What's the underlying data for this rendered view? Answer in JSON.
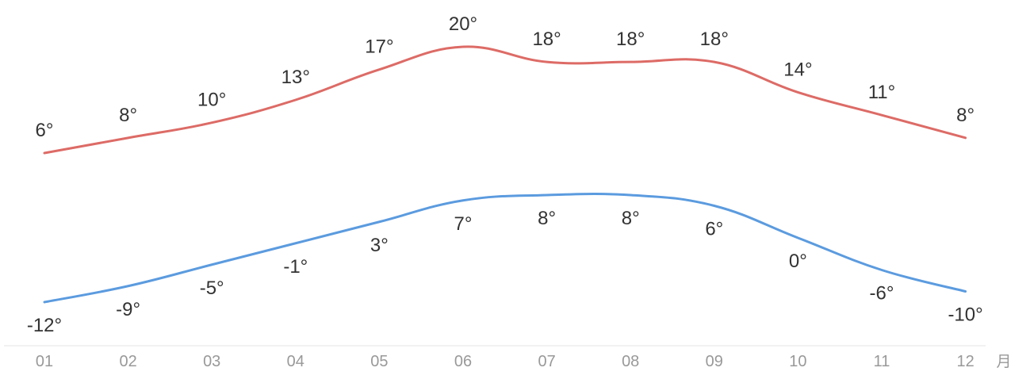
{
  "chart_data": {
    "type": "line",
    "categories": [
      "01",
      "02",
      "03",
      "04",
      "05",
      "06",
      "07",
      "08",
      "09",
      "10",
      "11",
      "12"
    ],
    "x_unit": "月",
    "series": [
      {
        "color": "#dd6b66",
        "values": [
          6,
          8,
          10,
          13,
          17,
          20,
          18,
          18,
          18,
          14,
          11,
          8
        ],
        "labels": [
          "6°",
          "8°",
          "10°",
          "13°",
          "17°",
          "20°",
          "18°",
          "18°",
          "18°",
          "14°",
          "11°",
          "8°"
        ],
        "label_position": "above"
      },
      {
        "color": "#5b9bdf",
        "values": [
          -12,
          -9,
          -5,
          -1,
          3,
          7,
          8,
          8,
          6,
          0,
          -6,
          -10
        ],
        "labels": [
          "-12°",
          "-9°",
          "-5°",
          "-1°",
          "3°",
          "7°",
          "8°",
          "8°",
          "6°",
          "0°",
          "-6°",
          "-10°"
        ],
        "label_position": "below"
      }
    ],
    "grid": false,
    "legend": "none"
  }
}
